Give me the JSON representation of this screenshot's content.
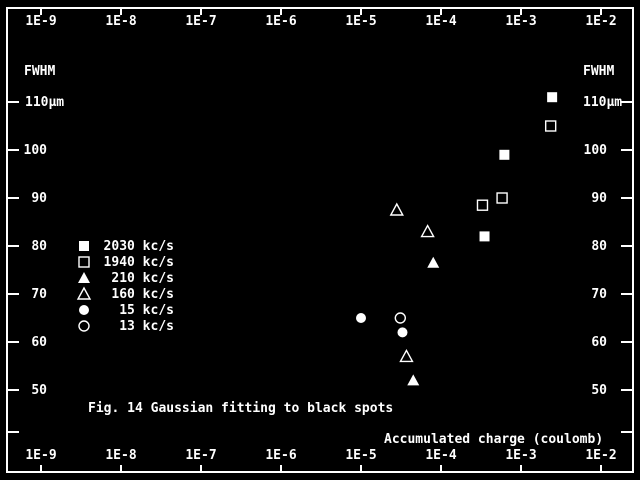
{
  "chart_data": {
    "type": "scatter",
    "x_scale": "log",
    "x_range": [
      1e-09,
      0.01
    ],
    "y_range": [
      45,
      115
    ],
    "x_ticks": [
      {
        "value": 1e-09,
        "label": "1E-9"
      },
      {
        "value": 1e-08,
        "label": "1E-8"
      },
      {
        "value": 1e-07,
        "label": "1E-7"
      },
      {
        "value": 1e-06,
        "label": "1E-6"
      },
      {
        "value": 1e-05,
        "label": "1E-5"
      },
      {
        "value": 0.0001,
        "label": "1E-4"
      },
      {
        "value": 0.001,
        "label": "1E-3"
      },
      {
        "value": 0.01,
        "label": "1E-2"
      }
    ],
    "y_ticks": [
      {
        "value": 110,
        "label": "110μm"
      },
      {
        "value": 100,
        "label": "100"
      },
      {
        "value": 90,
        "label": "90"
      },
      {
        "value": 80,
        "label": "80"
      },
      {
        "value": 70,
        "label": "70"
      },
      {
        "value": 60,
        "label": "60"
      },
      {
        "value": 50,
        "label": "50"
      }
    ],
    "ylabel": "FWHM",
    "xlabel": "Accumulated charge  (coulomb)",
    "caption": "Fig. 14  Gaussian fitting to black spots",
    "grid": false,
    "legend_position": "left-middle",
    "series": [
      {
        "name": "2030 kc/s",
        "marker": "square-filled",
        "points": [
          [
            0.00245,
            111
          ],
          [
            0.00062,
            99
          ],
          [
            0.00035,
            82
          ]
        ]
      },
      {
        "name": "1940 kc/s",
        "marker": "square-open",
        "points": [
          [
            0.00235,
            105
          ],
          [
            0.00058,
            90
          ],
          [
            0.00033,
            88.5
          ]
        ]
      },
      {
        "name": "210 kc/s",
        "marker": "triangle-filled",
        "points": [
          [
            8e-05,
            76.5
          ],
          [
            4.5e-05,
            52
          ]
        ]
      },
      {
        "name": "160 kc/s",
        "marker": "triangle-open",
        "points": [
          [
            6.8e-05,
            83
          ],
          [
            2.8e-05,
            87.5
          ],
          [
            3.7e-05,
            57
          ]
        ]
      },
      {
        "name": "15 kc/s",
        "marker": "circle-filled",
        "points": [
          [
            1e-05,
            65
          ],
          [
            3.3e-05,
            62
          ]
        ]
      },
      {
        "name": "13 kc/s",
        "marker": "circle-open",
        "points": [
          [
            3.1e-05,
            65
          ]
        ]
      }
    ],
    "colors": {
      "background": "#000000",
      "foreground": "#ffffff"
    }
  }
}
